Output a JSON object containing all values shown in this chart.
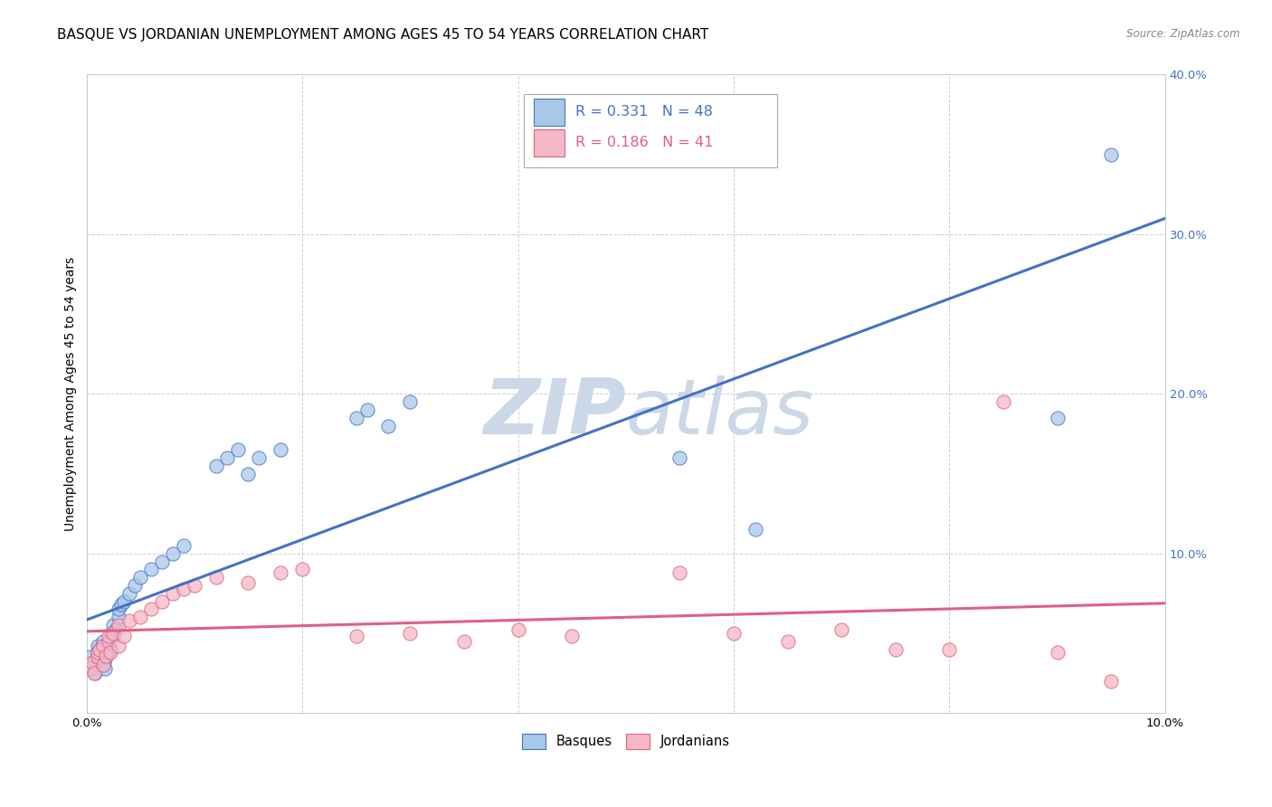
{
  "title": "BASQUE VS JORDANIAN UNEMPLOYMENT AMONG AGES 45 TO 54 YEARS CORRELATION CHART",
  "source": "Source: ZipAtlas.com",
  "ylabel": "Unemployment Among Ages 45 to 54 years",
  "xlim": [
    0.0,
    0.1
  ],
  "ylim": [
    0.0,
    0.4
  ],
  "xticks": [
    0.0,
    0.02,
    0.04,
    0.06,
    0.08,
    0.1
  ],
  "yticks": [
    0.0,
    0.1,
    0.2,
    0.3,
    0.4
  ],
  "xtick_labels": [
    "0.0%",
    "",
    "",
    "",
    "",
    "10.0%"
  ],
  "ytick_labels_left": [
    "",
    "",
    "",
    "",
    ""
  ],
  "ytick_labels_right": [
    "",
    "10.0%",
    "20.0%",
    "30.0%",
    "40.0%"
  ],
  "legend_labels": [
    "Basques",
    "Jordanians"
  ],
  "basque_color": "#a8c8e8",
  "jordanian_color": "#f4b8c8",
  "basque_line_color": "#4472c4",
  "jordanian_line_color": "#e06080",
  "R_basque": 0.331,
  "N_basque": 48,
  "R_jordanian": 0.186,
  "N_jordanian": 41,
  "basque_x": [
    0.0002,
    0.0003,
    0.0005,
    0.0007,
    0.0008,
    0.001,
    0.001,
    0.0012,
    0.0012,
    0.0014,
    0.0015,
    0.0015,
    0.0016,
    0.0017,
    0.0018,
    0.002,
    0.002,
    0.002,
    0.0022,
    0.0023,
    0.0025,
    0.0025,
    0.0027,
    0.003,
    0.003,
    0.0032,
    0.0035,
    0.004,
    0.0045,
    0.005,
    0.006,
    0.007,
    0.008,
    0.009,
    0.012,
    0.013,
    0.014,
    0.015,
    0.016,
    0.018,
    0.025,
    0.026,
    0.028,
    0.03,
    0.055,
    0.062,
    0.09,
    0.095
  ],
  "basque_y": [
    0.03,
    0.035,
    0.028,
    0.032,
    0.025,
    0.038,
    0.042,
    0.04,
    0.033,
    0.036,
    0.03,
    0.045,
    0.032,
    0.028,
    0.035,
    0.038,
    0.042,
    0.045,
    0.04,
    0.05,
    0.048,
    0.055,
    0.052,
    0.06,
    0.065,
    0.068,
    0.07,
    0.075,
    0.08,
    0.085,
    0.09,
    0.095,
    0.1,
    0.105,
    0.155,
    0.16,
    0.165,
    0.15,
    0.16,
    0.165,
    0.185,
    0.19,
    0.18,
    0.195,
    0.16,
    0.115,
    0.185,
    0.35
  ],
  "jordanian_x": [
    0.0003,
    0.0005,
    0.0007,
    0.001,
    0.001,
    0.0012,
    0.0015,
    0.0015,
    0.0018,
    0.002,
    0.002,
    0.0022,
    0.0025,
    0.003,
    0.003,
    0.0035,
    0.004,
    0.005,
    0.006,
    0.007,
    0.008,
    0.009,
    0.01,
    0.012,
    0.015,
    0.018,
    0.02,
    0.025,
    0.03,
    0.035,
    0.04,
    0.045,
    0.055,
    0.06,
    0.065,
    0.07,
    0.075,
    0.08,
    0.085,
    0.09,
    0.095
  ],
  "jordanian_y": [
    0.028,
    0.032,
    0.025,
    0.035,
    0.038,
    0.04,
    0.03,
    0.042,
    0.036,
    0.045,
    0.048,
    0.038,
    0.05,
    0.042,
    0.055,
    0.048,
    0.058,
    0.06,
    0.065,
    0.07,
    0.075,
    0.078,
    0.08,
    0.085,
    0.082,
    0.088,
    0.09,
    0.048,
    0.05,
    0.045,
    0.052,
    0.048,
    0.088,
    0.05,
    0.045,
    0.052,
    0.04,
    0.04,
    0.195,
    0.038,
    0.02
  ],
  "background_color": "#ffffff",
  "grid_color": "#bbbbbb",
  "title_fontsize": 11,
  "axis_label_fontsize": 10,
  "tick_fontsize": 9.5,
  "watermark_color": "#ccd8e8"
}
